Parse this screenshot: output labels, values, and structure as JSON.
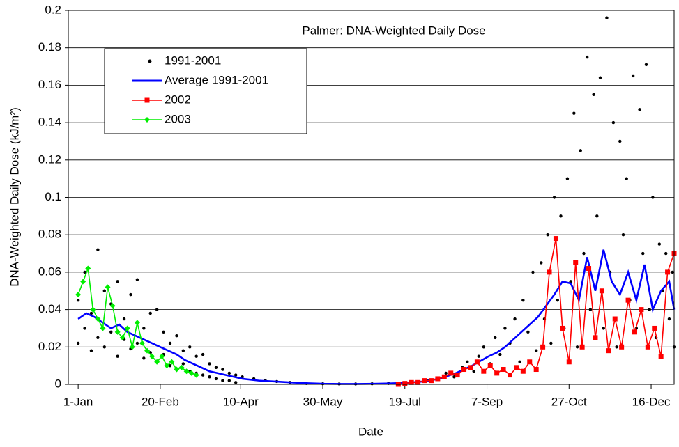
{
  "chart_data": {
    "type": "line",
    "title": "Palmer: DNA-Weighted Daily Dose",
    "x_label": "Date",
    "y_label": "DNA-Weighted Daily Dose (kJ/m²)",
    "xlim": [
      -5,
      364
    ],
    "ylim": [
      0,
      0.2
    ],
    "xticks": [
      {
        "value": 1,
        "label": "1-Jan"
      },
      {
        "value": 51,
        "label": "20-Feb"
      },
      {
        "value": 100,
        "label": "10-Apr"
      },
      {
        "value": 150,
        "label": "30-May"
      },
      {
        "value": 200,
        "label": "19-Jul"
      },
      {
        "value": 250,
        "label": "7-Sep"
      },
      {
        "value": 300,
        "label": "27-Oct"
      },
      {
        "value": 350,
        "label": "16-Dec"
      }
    ],
    "yticks": [
      0,
      0.02,
      0.04,
      0.06,
      0.08,
      0.1,
      0.12,
      0.14,
      0.16,
      0.18,
      0.2
    ],
    "grid": true,
    "legend": "upper left",
    "series": [
      {
        "name": "1991-2001",
        "color": "#000000",
        "style": "points",
        "x": [
          1,
          1,
          5,
          5,
          9,
          9,
          13,
          13,
          17,
          17,
          21,
          21,
          25,
          25,
          29,
          29,
          33,
          33,
          37,
          37,
          41,
          41,
          45,
          45,
          49,
          49,
          53,
          53,
          57,
          57,
          61,
          61,
          65,
          65,
          69,
          69,
          73,
          73,
          77,
          77,
          81,
          81,
          85,
          85,
          89,
          89,
          93,
          93,
          97,
          97,
          101,
          108,
          115,
          122,
          130,
          140,
          150,
          160,
          170,
          180,
          190,
          200,
          207,
          214,
          220,
          225,
          230,
          235,
          238,
          242,
          245,
          248,
          252,
          255,
          258,
          261,
          264,
          267,
          270,
          272,
          275,
          278,
          280,
          283,
          285,
          287,
          289,
          291,
          293,
          295,
          297,
          299,
          301,
          303,
          305,
          307,
          309,
          311,
          313,
          315,
          317,
          319,
          321,
          323,
          325,
          327,
          329,
          331,
          333,
          335,
          337,
          339,
          341,
          343,
          345,
          347,
          349,
          351,
          353,
          355,
          357,
          359,
          361,
          363,
          364
        ],
        "values": [
          0.045,
          0.022,
          0.06,
          0.03,
          0.038,
          0.018,
          0.072,
          0.025,
          0.05,
          0.02,
          0.043,
          0.028,
          0.055,
          0.015,
          0.035,
          0.024,
          0.048,
          0.019,
          0.056,
          0.022,
          0.03,
          0.014,
          0.038,
          0.017,
          0.04,
          0.012,
          0.028,
          0.016,
          0.022,
          0.01,
          0.026,
          0.008,
          0.018,
          0.011,
          0.02,
          0.007,
          0.015,
          0.006,
          0.016,
          0.005,
          0.011,
          0.004,
          0.009,
          0.003,
          0.008,
          0.002,
          0.006,
          0.002,
          0.005,
          0.001,
          0.004,
          0.003,
          0.002,
          0.0015,
          0.001,
          0.0005,
          0.0003,
          0.0002,
          0.0002,
          0.0003,
          0.0005,
          0.0008,
          0.001,
          0.002,
          0.003,
          0.006,
          0.004,
          0.009,
          0.012,
          0.007,
          0.015,
          0.02,
          0.011,
          0.025,
          0.016,
          0.03,
          0.022,
          0.035,
          0.012,
          0.045,
          0.028,
          0.06,
          0.018,
          0.065,
          0.035,
          0.08,
          0.022,
          0.1,
          0.045,
          0.09,
          0.03,
          0.11,
          0.055,
          0.145,
          0.02,
          0.125,
          0.07,
          0.175,
          0.04,
          0.155,
          0.09,
          0.164,
          0.03,
          0.196,
          0.06,
          0.14,
          0.02,
          0.13,
          0.08,
          0.11,
          0.045,
          0.165,
          0.03,
          0.147,
          0.07,
          0.171,
          0.04,
          0.1,
          0.025,
          0.075,
          0.05,
          0.07,
          0.035,
          0.06,
          0.02
        ]
      },
      {
        "name": "Average 1991-2001",
        "color": "#0000ff",
        "style": "line",
        "x": [
          1,
          6,
          11,
          16,
          21,
          26,
          31,
          36,
          41,
          46,
          51,
          56,
          61,
          66,
          71,
          76,
          81,
          86,
          91,
          96,
          101,
          111,
          121,
          131,
          141,
          151,
          161,
          171,
          181,
          191,
          201,
          211,
          221,
          231,
          241,
          251,
          256,
          261,
          266,
          271,
          276,
          281,
          286,
          291,
          296,
          301,
          306,
          311,
          316,
          321,
          326,
          331,
          336,
          341,
          346,
          351,
          356,
          361,
          364
        ],
        "values": [
          0.035,
          0.038,
          0.036,
          0.033,
          0.03,
          0.032,
          0.028,
          0.026,
          0.024,
          0.022,
          0.02,
          0.018,
          0.016,
          0.013,
          0.011,
          0.009,
          0.007,
          0.006,
          0.005,
          0.004,
          0.003,
          0.002,
          0.0015,
          0.001,
          0.0006,
          0.0003,
          0.0002,
          0.0002,
          0.0003,
          0.0005,
          0.0008,
          0.0015,
          0.003,
          0.006,
          0.01,
          0.015,
          0.017,
          0.02,
          0.024,
          0.028,
          0.032,
          0.036,
          0.042,
          0.048,
          0.055,
          0.054,
          0.045,
          0.068,
          0.05,
          0.072,
          0.055,
          0.048,
          0.06,
          0.045,
          0.064,
          0.04,
          0.05,
          0.055,
          0.04
        ]
      },
      {
        "name": "2002",
        "color": "#ff0000",
        "style": "line",
        "marker": "square",
        "x": [
          196,
          200,
          204,
          208,
          212,
          216,
          220,
          224,
          228,
          232,
          236,
          240,
          244,
          248,
          252,
          256,
          260,
          264,
          268,
          272,
          276,
          280,
          284,
          288,
          292,
          296,
          300,
          304,
          308,
          312,
          316,
          320,
          324,
          328,
          332,
          336,
          340,
          344,
          348,
          352,
          356,
          360,
          364
        ],
        "values": [
          0,
          0.0005,
          0.001,
          0.001,
          0.002,
          0.002,
          0.003,
          0.004,
          0.006,
          0.005,
          0.008,
          0.009,
          0.012,
          0.007,
          0.01,
          0.006,
          0.008,
          0.005,
          0.009,
          0.007,
          0.012,
          0.008,
          0.02,
          0.06,
          0.078,
          0.03,
          0.012,
          0.065,
          0.02,
          0.062,
          0.025,
          0.05,
          0.018,
          0.035,
          0.02,
          0.045,
          0.028,
          0.04,
          0.02,
          0.03,
          0.015,
          0.06,
          0.07
        ]
      },
      {
        "name": "2003",
        "color": "#00ee00",
        "style": "line",
        "marker": "diamond",
        "x": [
          1,
          4,
          7,
          10,
          13,
          16,
          19,
          22,
          25,
          28,
          31,
          34,
          37,
          40,
          43,
          46,
          49,
          52,
          55,
          58,
          61,
          64,
          67,
          70,
          73
        ],
        "values": [
          0.048,
          0.055,
          0.062,
          0.04,
          0.035,
          0.03,
          0.052,
          0.042,
          0.028,
          0.025,
          0.03,
          0.02,
          0.033,
          0.022,
          0.018,
          0.015,
          0.012,
          0.015,
          0.01,
          0.012,
          0.008,
          0.009,
          0.007,
          0.006,
          0.005
        ]
      }
    ]
  }
}
